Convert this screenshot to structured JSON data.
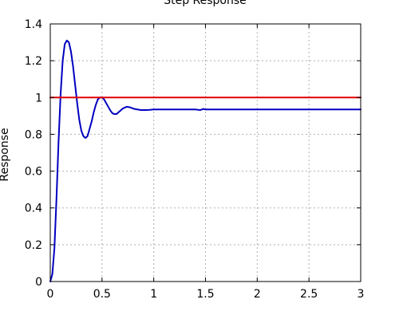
{
  "chart_data": {
    "type": "line",
    "title": "Step Response",
    "xlabel": "",
    "ylabel": "Response",
    "xlim": [
      0,
      3
    ],
    "ylim": [
      0,
      1.4
    ],
    "grid": true,
    "xticks": [
      "0",
      "0.5",
      "1",
      "1.5",
      "2",
      "2.5",
      "3"
    ],
    "yticks": [
      "0",
      "0.2",
      "0.4",
      "0.6",
      "0.8",
      "1",
      "1.2",
      "1.4"
    ],
    "series": [
      {
        "color": "#0000c0",
        "x": [
          0,
          0.02,
          0.04,
          0.06,
          0.08,
          0.1,
          0.12,
          0.14,
          0.16,
          0.18,
          0.2,
          0.22,
          0.24,
          0.26,
          0.28,
          0.3,
          0.32,
          0.34,
          0.36,
          0.38,
          0.4,
          0.42,
          0.44,
          0.46,
          0.48,
          0.5,
          0.52,
          0.54,
          0.56,
          0.58,
          0.6,
          0.62,
          0.64,
          0.66,
          0.68,
          0.7,
          0.72,
          0.74,
          0.76,
          0.78,
          0.8,
          0.84,
          0.88,
          0.92,
          0.96,
          1.0,
          1.05,
          1.1,
          1.15,
          1.2,
          1.3,
          1.4,
          1.45,
          1.48,
          1.5,
          1.6,
          1.8,
          2.0,
          2.5,
          3.0
        ],
        "y": [
          0,
          0.04,
          0.18,
          0.45,
          0.76,
          1.02,
          1.2,
          1.29,
          1.31,
          1.3,
          1.25,
          1.17,
          1.07,
          0.97,
          0.88,
          0.82,
          0.79,
          0.78,
          0.79,
          0.83,
          0.87,
          0.92,
          0.96,
          0.99,
          1.0,
          1.0,
          0.99,
          0.97,
          0.95,
          0.93,
          0.915,
          0.91,
          0.91,
          0.92,
          0.93,
          0.94,
          0.945,
          0.95,
          0.948,
          0.945,
          0.94,
          0.935,
          0.932,
          0.932,
          0.933,
          0.935,
          0.935,
          0.935,
          0.935,
          0.935,
          0.935,
          0.935,
          0.932,
          0.938,
          0.935,
          0.935,
          0.935,
          0.935,
          0.935,
          0.935
        ]
      },
      {
        "color": "#e00000",
        "x": [
          0,
          3
        ],
        "y": [
          1,
          1
        ]
      }
    ]
  }
}
